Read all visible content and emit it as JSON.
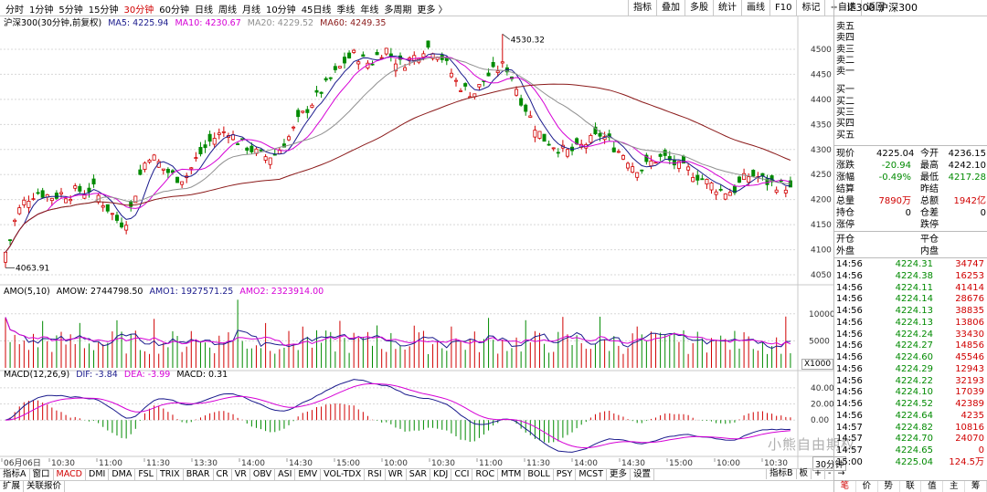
{
  "toolbar": {
    "periods": [
      "分时",
      "1分钟",
      "5分钟",
      "15分钟",
      "30分钟",
      "60分钟",
      "日线",
      "周线",
      "月线",
      "10分钟",
      "45日线",
      "季线",
      "年线",
      "多周期",
      "更多 〉"
    ],
    "active_period": "30分钟",
    "buttons": [
      "指标",
      "叠加",
      "多股",
      "统计",
      "画线",
      "F10",
      "标记",
      "+自选",
      "返回"
    ]
  },
  "quote_header": {
    "title": "IF300 沪深300"
  },
  "chart_legend": {
    "title": "沪深300(30分钟,前复权)",
    "ma5": "MA5: 4225.94",
    "ma10": "MA10: 4230.67",
    "ma20": "MA20: 4229.52",
    "ma60": "MA60: 4249.35"
  },
  "amo_legend": {
    "title": "AMO(5,10)",
    "amow": "AMOW: 2744798.50",
    "amo1": "AMO1: 1927571.25",
    "amo2": "AMO2: 2323914.00"
  },
  "macd_legend": {
    "title": "MACD(12,26,9)",
    "dif": "DIF: -3.84",
    "dea": "DEA: -3.99",
    "macd": "MACD: 0.31"
  },
  "annotations": {
    "high": "4530.32",
    "low": "4063.91"
  },
  "x_axis_labels": [
    "06月06日",
    "10:30",
    "11:00",
    "11:30",
    "13:30",
    "14:00",
    "14:30",
    "15:00",
    "10:00",
    "10:30",
    "11:00",
    "11:30",
    "14:00",
    "14:30",
    "15:00",
    "10:00",
    "10:30"
  ],
  "unit_label": "X1000",
  "period_indicator": "30分钟",
  "bottom_tabs": [
    "指标A",
    "窗口",
    "MACD",
    "DMI",
    "DMA",
    "FSL",
    "TRIX",
    "BRAR",
    "CR",
    "VR",
    "OBV",
    "ASI",
    "EMV",
    "VOL-TDX",
    "RSI",
    "WR",
    "SAR",
    "KDJ",
    "CCI",
    "ROC",
    "MTM",
    "BOLL",
    "PSY",
    "MCST",
    "更多",
    "设置"
  ],
  "bottom_active": "MACD",
  "bottom_row2": [
    "扩展",
    "关联报价"
  ],
  "right_controls": [
    "指标B",
    "板",
    "+",
    "-",
    "→"
  ],
  "panel_tabs": [
    "笔",
    "价",
    "势",
    "联",
    "值",
    "主",
    "筹"
  ],
  "order_book": [
    "卖五",
    "卖四",
    "卖三",
    "卖二",
    "卖一",
    "买一",
    "买二",
    "买三",
    "买四",
    "买五"
  ],
  "quote": [
    {
      "l1": "现价",
      "v1": "4225.04",
      "l2": "今开",
      "v2": "4236.15"
    },
    {
      "l1": "涨跌",
      "v1": "-20.94",
      "l2": "最高",
      "v2": "4242.10"
    },
    {
      "l1": "涨幅",
      "v1": "-0.49%",
      "l2": "最低",
      "v2": "4217.28"
    },
    {
      "l1": "结算",
      "v1": "",
      "l2": "昨结",
      "v2": ""
    },
    {
      "l1": "总量",
      "v1": "7890万",
      "l2": "总额",
      "v2": "1942亿"
    },
    {
      "l1": "持仓",
      "v1": "0",
      "l2": "仓差",
      "v2": "0"
    },
    {
      "l1": "涨停",
      "v1": "",
      "l2": "跌停",
      "v2": ""
    }
  ],
  "open_close": [
    {
      "l1": "开仓",
      "l2": "平仓"
    },
    {
      "l1": "外盘",
      "l2": "内盘"
    }
  ],
  "ticks": [
    {
      "t": "14:56",
      "p": "4224.31",
      "v": "34747"
    },
    {
      "t": "14:56",
      "p": "4224.38",
      "v": "16253"
    },
    {
      "t": "14:56",
      "p": "4224.11",
      "v": "41414"
    },
    {
      "t": "14:56",
      "p": "4224.14",
      "v": "28676"
    },
    {
      "t": "14:56",
      "p": "4224.13",
      "v": "38835"
    },
    {
      "t": "14:56",
      "p": "4224.13",
      "v": "13806"
    },
    {
      "t": "14:56",
      "p": "4224.24",
      "v": "33430"
    },
    {
      "t": "14:56",
      "p": "4224.27",
      "v": "14856"
    },
    {
      "t": "14:56",
      "p": "4224.60",
      "v": "45546"
    },
    {
      "t": "14:56",
      "p": "4224.29",
      "v": "12943"
    },
    {
      "t": "14:56",
      "p": "4224.22",
      "v": "32193"
    },
    {
      "t": "14:56",
      "p": "4224.10",
      "v": "17039"
    },
    {
      "t": "14:56",
      "p": "4224.52",
      "v": "42389"
    },
    {
      "t": "14:56",
      "p": "4224.64",
      "v": "4235"
    },
    {
      "t": "14:57",
      "p": "4224.82",
      "v": "10816"
    },
    {
      "t": "14:57",
      "p": "4224.70",
      "v": "24070"
    },
    {
      "t": "14:57",
      "p": "4224.65",
      "v": "0"
    },
    {
      "t": "15:00",
      "p": "4225.04",
      "v": "124.5万"
    }
  ],
  "watermark": "小熊自由期权",
  "colors": {
    "up": "#d00000",
    "down": "#008a00",
    "ma5": "#1a1a8c",
    "ma10": "#d600d6",
    "ma20": "#909090",
    "ma60": "#8b1a1a",
    "amo1": "#1a1a8c",
    "amo2": "#d600d6"
  },
  "chart_data": {
    "type": "candlestick",
    "price_axis": {
      "ticks": [
        4500,
        4450,
        4400,
        4350,
        4300,
        4250,
        4200,
        4150,
        4100,
        4050
      ],
      "range": [
        4030,
        4540
      ]
    },
    "amo_axis": {
      "ticks": [
        10000,
        5000
      ],
      "unit": "X1000",
      "range": [
        0,
        13000
      ]
    },
    "macd_axis": {
      "ticks": [
        40.0,
        20.0,
        0.0
      ],
      "range": [
        -45,
        50
      ]
    },
    "period_high": 4530.32,
    "period_low": 4063.91,
    "last": {
      "close": 4225.04,
      "ma5": 4225.94,
      "ma10": 4230.67,
      "ma20": 4229.52,
      "ma60": 4249.35
    },
    "close_trend": [
      4080,
      4150,
      4190,
      4205,
      4215,
      4210,
      4205,
      4212,
      4208,
      4220,
      4215,
      4225,
      4200,
      4180,
      4160,
      4150,
      4190,
      4250,
      4290,
      4280,
      4260,
      4250,
      4240,
      4250,
      4280,
      4300,
      4320,
      4330,
      4340,
      4320,
      4310,
      4300,
      4290,
      4285,
      4290,
      4310,
      4330,
      4360,
      4380,
      4400,
      4420,
      4440,
      4460,
      4480,
      4490,
      4480,
      4470,
      4490,
      4500,
      4480,
      4470,
      4480,
      4490,
      4505,
      4500,
      4485,
      4460,
      4430,
      4420,
      4410,
      4430,
      4450,
      4460,
      4470,
      4440,
      4400,
      4370,
      4340,
      4320,
      4310,
      4300,
      4295,
      4300,
      4310,
      4320,
      4330,
      4320,
      4300,
      4290,
      4270,
      4260,
      4270,
      4280,
      4285,
      4275,
      4265,
      4260,
      4250,
      4240,
      4230,
      4220,
      4215,
      4220,
      4240,
      4250,
      4245,
      4235,
      4230,
      4228,
      4225
    ]
  }
}
